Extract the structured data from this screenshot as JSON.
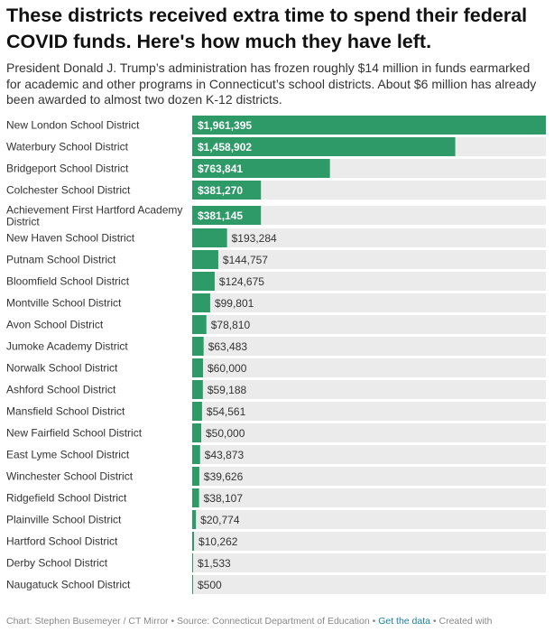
{
  "header": {
    "title": "These districts received extra time to spend their federal COVID funds. Here's how much they have left.",
    "subtitle": "President Donald J. Trump’s administration has frozen roughly $14 million in funds earmarked for academic and other programs in Connecticut’s school districts. About $6 million has already been awarded to almost two dozen K-12 districts."
  },
  "chart_data": {
    "type": "bar",
    "orientation": "horizontal",
    "categories": [
      "New London School District",
      "Waterbury School District",
      "Bridgeport School District",
      "Colchester School District",
      "Achievement First Hartford Academy District",
      "New Haven School District",
      "Putnam School District",
      "Bloomfield School District",
      "Montville School District",
      "Avon School District",
      "Jumoke Academy District",
      "Norwalk School District",
      "Ashford School District",
      "Mansfield School District",
      "New Fairfield School District",
      "East Lyme School District",
      "Winchester School District",
      "Ridgefield School District",
      "Plainville School District",
      "Hartford School District",
      "Derby School District",
      "Naugatuck School District"
    ],
    "values": [
      1961395,
      1458902,
      763841,
      381270,
      381145,
      193284,
      144757,
      124675,
      99801,
      78810,
      63483,
      60000,
      59188,
      54561,
      50000,
      43873,
      39626,
      38107,
      20774,
      10262,
      1533,
      500
    ],
    "value_labels": [
      "$1,961,395",
      "$1,458,902",
      "$763,841",
      "$381,270",
      "$381,145",
      "$193,284",
      "$144,757",
      "$124,675",
      "$99,801",
      "$78,810",
      "$63,483",
      "$60,000",
      "$59,188",
      "$54,561",
      "$50,000",
      "$43,873",
      "$39,626",
      "$38,107",
      "$20,774",
      "$10,262",
      "$1,533",
      "$500"
    ],
    "xlim": [
      0,
      1961395
    ],
    "colors": {
      "bar": "#2d9a67",
      "track": "#ebebeb",
      "label_inside": "#ffffff",
      "label_outside": "#333333"
    }
  },
  "footer": {
    "credit": "Chart: Stephen Busemeyer / CT Mirror • Source: Connecticut Department of Education • ",
    "get_data": "Get the data",
    "created_with": " • Created with"
  }
}
